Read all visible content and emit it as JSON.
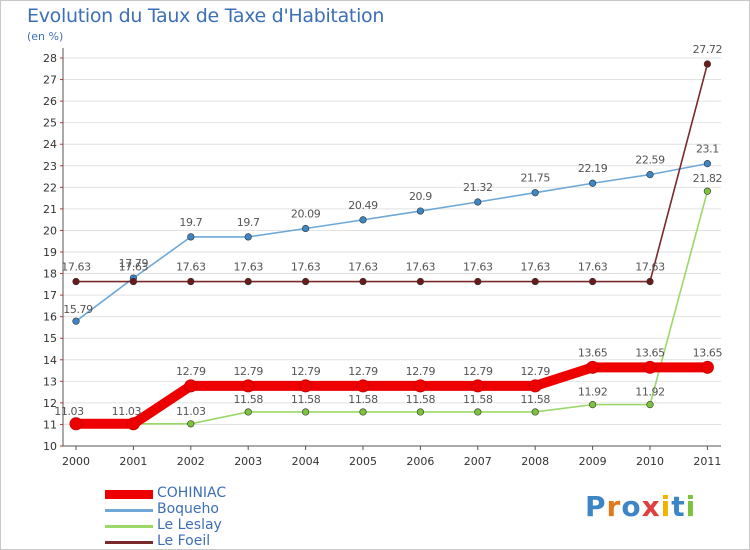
{
  "chart_data": {
    "type": "line",
    "title": "Evolution du Taux de Taxe d'Habitation",
    "subtitle": "(en %)",
    "xlabel": "",
    "ylabel": "(en %)",
    "ylim": [
      10,
      28
    ],
    "yticks": [
      "10",
      "11",
      "12",
      "13",
      "14",
      "15",
      "16",
      "17",
      "18",
      "19",
      "20",
      "21",
      "22",
      "23",
      "24",
      "25",
      "26",
      "27",
      "28"
    ],
    "categories": [
      "2000",
      "2001",
      "2002",
      "2003",
      "2004",
      "2005",
      "2006",
      "2007",
      "2008",
      "2009",
      "2010",
      "2011"
    ],
    "series": [
      {
        "name": "COHINIAC",
        "color": "#ee0000",
        "style": "thick",
        "values": [
          11.03,
          11.03,
          12.79,
          12.79,
          12.79,
          12.79,
          12.79,
          12.79,
          12.79,
          13.65,
          13.65,
          13.65
        ],
        "labels": [
          "11.03",
          "11.03",
          "12.79",
          "12.79",
          "12.79",
          "12.79",
          "12.79",
          "12.79",
          "12.79",
          "13.65",
          "13.65",
          "13.65"
        ]
      },
      {
        "name": "Boqueho",
        "color": "#6fa8d6",
        "style": "thin",
        "marker": "#3d86c6",
        "values": [
          15.79,
          17.79,
          19.7,
          19.7,
          20.09,
          20.49,
          20.9,
          21.32,
          21.75,
          22.19,
          22.59,
          23.1
        ],
        "labels": [
          "15.79",
          "17.79",
          "19.7",
          "19.7",
          "20.09",
          "20.49",
          "20.9",
          "21.32",
          "21.75",
          "22.19",
          "22.59",
          "23.1"
        ]
      },
      {
        "name": "Le Leslay",
        "color": "#9bd86a",
        "style": "thin",
        "marker": "#7cc23a",
        "values": [
          11.03,
          11.03,
          11.03,
          11.58,
          11.58,
          11.58,
          11.58,
          11.58,
          11.58,
          11.92,
          11.92,
          21.82
        ],
        "labels": [
          "11.03",
          "11.03",
          "11.03",
          "11.58",
          "11.58",
          "11.58",
          "11.58",
          "11.58",
          "11.58",
          "11.92",
          "11.92",
          "21.82"
        ]
      },
      {
        "name": "Le Foeil",
        "color": "#7a2a2a",
        "style": "thin",
        "marker": "#6a1a1a",
        "values": [
          17.63,
          17.63,
          17.63,
          17.63,
          17.63,
          17.63,
          17.63,
          17.63,
          17.63,
          17.63,
          17.63,
          27.72
        ],
        "labels": [
          "17.63",
          "17.63",
          "17.63",
          "17.63",
          "17.63",
          "17.63",
          "17.63",
          "17.63",
          "17.63",
          "17.63",
          "17.63",
          "27.72"
        ]
      }
    ]
  },
  "logo": {
    "letters": [
      {
        "ch": "P",
        "color": "#3d86c6"
      },
      {
        "ch": "r",
        "color": "#e07a1a"
      },
      {
        "ch": "o",
        "color": "#3d86c6"
      },
      {
        "ch": "x",
        "color": "#e04040"
      },
      {
        "ch": "i",
        "color": "#f2b200"
      },
      {
        "ch": "t",
        "color": "#3d86c6"
      },
      {
        "ch": "i",
        "color": "#7cc23a"
      }
    ]
  }
}
